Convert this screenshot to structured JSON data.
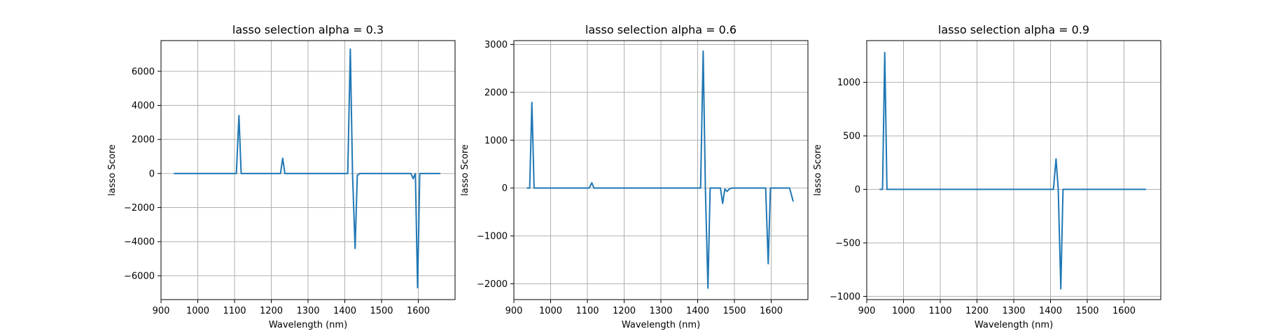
{
  "chart_data": [
    {
      "type": "line",
      "title": "lasso selection alpha = 0.3",
      "xlabel": "Wavelength (nm)",
      "ylabel": "lasso Score",
      "xlim": [
        900,
        1700
      ],
      "ylim": [
        -7400,
        7800
      ],
      "xticks": [
        900,
        1000,
        1100,
        1200,
        1300,
        1400,
        1500,
        1600
      ],
      "xtick_labels": [
        "900",
        "1000",
        "1100",
        "1200",
        "1300",
        "1400",
        "1500",
        "1600"
      ],
      "yticks": [
        -6000,
        -4000,
        -2000,
        0,
        2000,
        4000,
        6000
      ],
      "ytick_labels": [
        "−6000",
        "−4000",
        "−2000",
        "0",
        "2000",
        "4000",
        "6000"
      ],
      "grid": true,
      "color": "#1f77b4",
      "series": [
        {
          "x": [
            935,
            1105,
            1112,
            1118,
            1225,
            1231,
            1237,
            1408,
            1415,
            1421,
            1428,
            1434,
            1440,
            1580,
            1586,
            1592,
            1598,
            1604,
            1660
          ],
          "values": [
            0,
            0,
            3400,
            0,
            0,
            900,
            0,
            0,
            7300,
            0,
            -4400,
            -100,
            0,
            0,
            -300,
            0,
            -6700,
            0,
            0
          ]
        }
      ]
    },
    {
      "type": "line",
      "title": "lasso selection alpha = 0.6",
      "xlabel": "Wavelength (nm)",
      "ylabel": "lasso Score",
      "xlim": [
        900,
        1700
      ],
      "ylim": [
        -2330,
        3080
      ],
      "xticks": [
        900,
        1000,
        1100,
        1200,
        1300,
        1400,
        1500,
        1600
      ],
      "xtick_labels": [
        "900",
        "1000",
        "1100",
        "1200",
        "1300",
        "1400",
        "1500",
        "1600"
      ],
      "yticks": [
        -2000,
        -1000,
        0,
        1000,
        2000,
        3000
      ],
      "ytick_labels": [
        "−2000",
        "−1000",
        "0",
        "1000",
        "2000",
        "3000"
      ],
      "grid": true,
      "color": "#1f77b4",
      "series": [
        {
          "x": [
            935,
            943,
            949,
            955,
            1105,
            1112,
            1118,
            1408,
            1415,
            1421,
            1428,
            1434,
            1462,
            1468,
            1474,
            1480,
            1486,
            1492,
            1585,
            1592,
            1598,
            1604,
            1650,
            1660
          ],
          "values": [
            0,
            0,
            1790,
            0,
            0,
            110,
            0,
            0,
            2860,
            0,
            -2090,
            0,
            0,
            -320,
            -20,
            -70,
            -20,
            0,
            0,
            -1580,
            0,
            0,
            0,
            -280
          ]
        }
      ]
    },
    {
      "type": "line",
      "title": "lasso selection alpha = 0.9",
      "xlabel": "Wavelength (nm)",
      "ylabel": "lasso Score",
      "xlim": [
        900,
        1700
      ],
      "ylim": [
        -1030,
        1390
      ],
      "xticks": [
        900,
        1000,
        1100,
        1200,
        1300,
        1400,
        1500,
        1600
      ],
      "xtick_labels": [
        "900",
        "1000",
        "1100",
        "1200",
        "1300",
        "1400",
        "1500",
        "1600"
      ],
      "yticks": [
        -1000,
        -500,
        0,
        500,
        1000
      ],
      "ytick_labels": [
        "−1000",
        "−500",
        "0",
        "500",
        "1000"
      ],
      "grid": true,
      "color": "#1f77b4",
      "series": [
        {
          "x": [
            935,
            943,
            949,
            955,
            1408,
            1415,
            1421,
            1428,
            1434,
            1660
          ],
          "values": [
            0,
            0,
            1280,
            0,
            0,
            285,
            0,
            -930,
            0,
            0
          ]
        }
      ]
    }
  ]
}
